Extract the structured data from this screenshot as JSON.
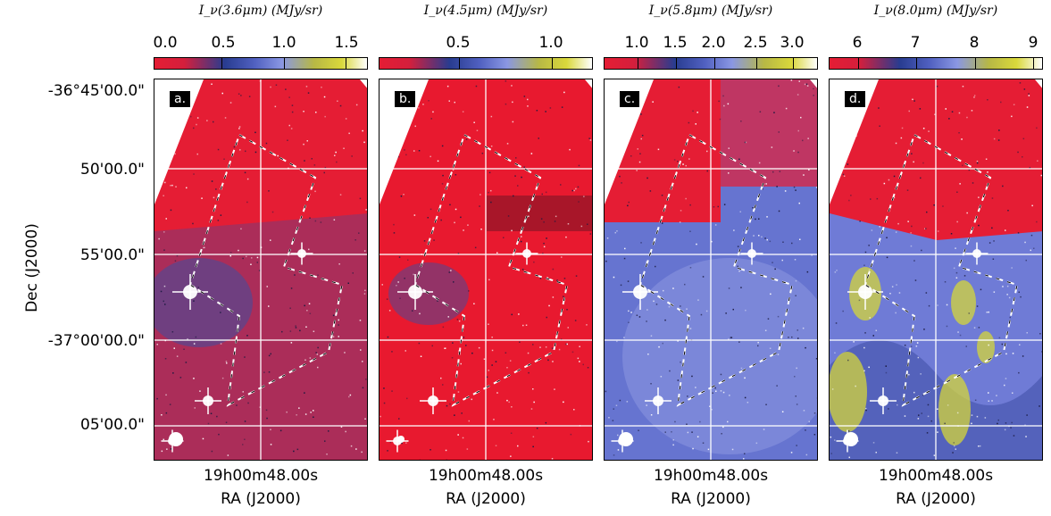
{
  "axes": {
    "ylabel": "Dec (J2000)",
    "xlabel": "RA (J2000)",
    "xtick": "19h00m48.00s",
    "yticks": [
      "-36°45'00.0\"",
      "50'00.0\"",
      "55'00.0\"",
      "-37°00'00.0\"",
      "05'00.0\""
    ]
  },
  "panels": [
    {
      "label": "a.",
      "title": "I_ν(3.6μm) (MJy/sr)",
      "cbar_ticks": [
        "0.0",
        "0.5",
        "1.0",
        "1.5"
      ],
      "colors": {
        "bg": "#e51d34",
        "low": "#6f3a80",
        "mid": "#3e4ea0",
        "bright": "#8a97e3"
      }
    },
    {
      "label": "b.",
      "title": "I_ν(4.5μm) (MJy/sr)",
      "cbar_ticks": [
        "0.5",
        "1.0"
      ],
      "colors": {
        "bg": "#e8192f",
        "low": "#b2204a",
        "mid": "#3e4ea0",
        "bright": "#8a97e3"
      }
    },
    {
      "label": "c.",
      "title": "I_ν(5.8μm) (MJy/sr)",
      "cbar_ticks": [
        "1.0",
        "1.5",
        "2.0",
        "2.5",
        "3.0"
      ],
      "colors": {
        "bg": "#6674d0",
        "low": "#e51d34",
        "mid": "#3a4aa0",
        "bright": "#a3acec"
      }
    },
    {
      "label": "d.",
      "title": "I_ν(8.0μm) (MJy/sr)",
      "cbar_ticks": [
        "6",
        "7",
        "8",
        "9"
      ],
      "colors": {
        "bg": "#6f7bd6",
        "low": "#e51d34",
        "mid": "#3a4aa0",
        "bright": "#d4d63a"
      }
    }
  ]
}
